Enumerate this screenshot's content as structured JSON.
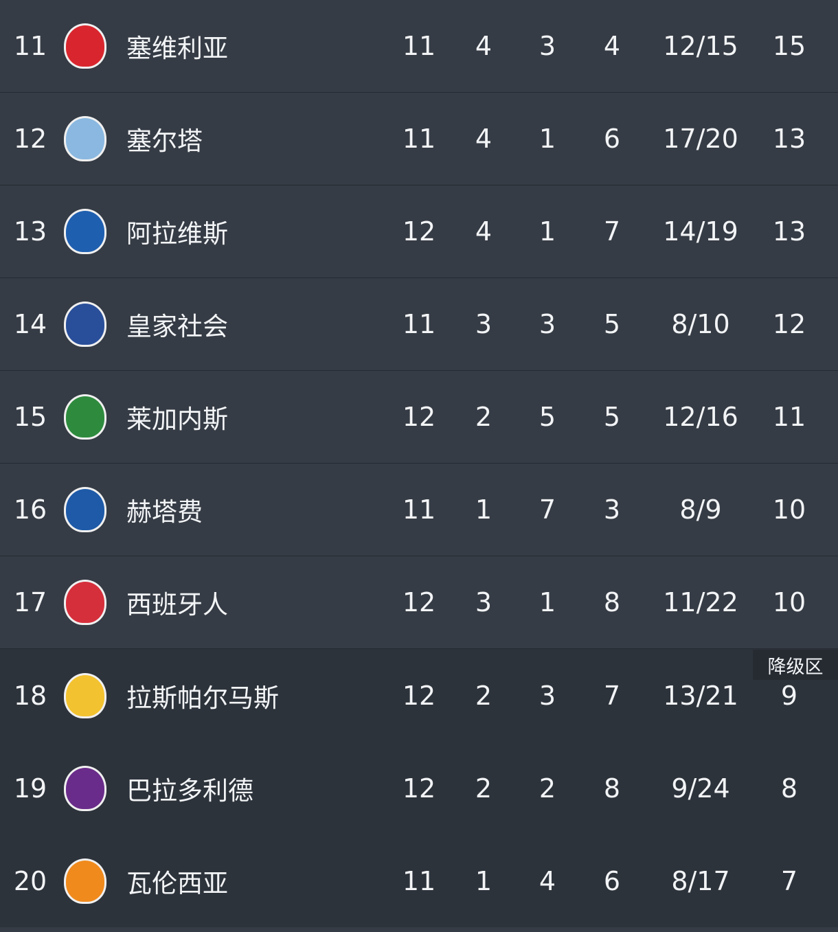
{
  "zone_label": "降级区",
  "rows": [
    {
      "rank": "11",
      "team": "塞维利亚",
      "p": "11",
      "w": "4",
      "d": "3",
      "l": "4",
      "goals": "12/15",
      "pts": "15",
      "color": "#d9262e"
    },
    {
      "rank": "12",
      "team": "塞尔塔",
      "p": "11",
      "w": "4",
      "d": "1",
      "l": "6",
      "goals": "17/20",
      "pts": "13",
      "color": "#8ab8e0"
    },
    {
      "rank": "13",
      "team": "阿拉维斯",
      "p": "12",
      "w": "4",
      "d": "1",
      "l": "7",
      "goals": "14/19",
      "pts": "13",
      "color": "#1f5fb0"
    },
    {
      "rank": "14",
      "team": "皇家社会",
      "p": "11",
      "w": "3",
      "d": "3",
      "l": "5",
      "goals": "8/10",
      "pts": "12",
      "color": "#2a4f9a"
    },
    {
      "rank": "15",
      "team": "莱加内斯",
      "p": "12",
      "w": "2",
      "d": "5",
      "l": "5",
      "goals": "12/16",
      "pts": "11",
      "color": "#2e8b3e"
    },
    {
      "rank": "16",
      "team": "赫塔费",
      "p": "11",
      "w": "1",
      "d": "7",
      "l": "3",
      "goals": "8/9",
      "pts": "10",
      "color": "#1e5aa8"
    },
    {
      "rank": "17",
      "team": "西班牙人",
      "p": "12",
      "w": "3",
      "d": "1",
      "l": "8",
      "goals": "11/22",
      "pts": "10",
      "color": "#d62f3c"
    },
    {
      "rank": "18",
      "team": "拉斯帕尔马斯",
      "p": "12",
      "w": "2",
      "d": "3",
      "l": "7",
      "goals": "13/21",
      "pts": "9",
      "color": "#f2c230"
    },
    {
      "rank": "19",
      "team": "巴拉多利德",
      "p": "12",
      "w": "2",
      "d": "2",
      "l": "8",
      "goals": "9/24",
      "pts": "8",
      "color": "#6a2c8a"
    },
    {
      "rank": "20",
      "team": "瓦伦西亚",
      "p": "11",
      "w": "1",
      "d": "4",
      "l": "6",
      "goals": "8/17",
      "pts": "7",
      "color": "#f08a1c"
    }
  ]
}
